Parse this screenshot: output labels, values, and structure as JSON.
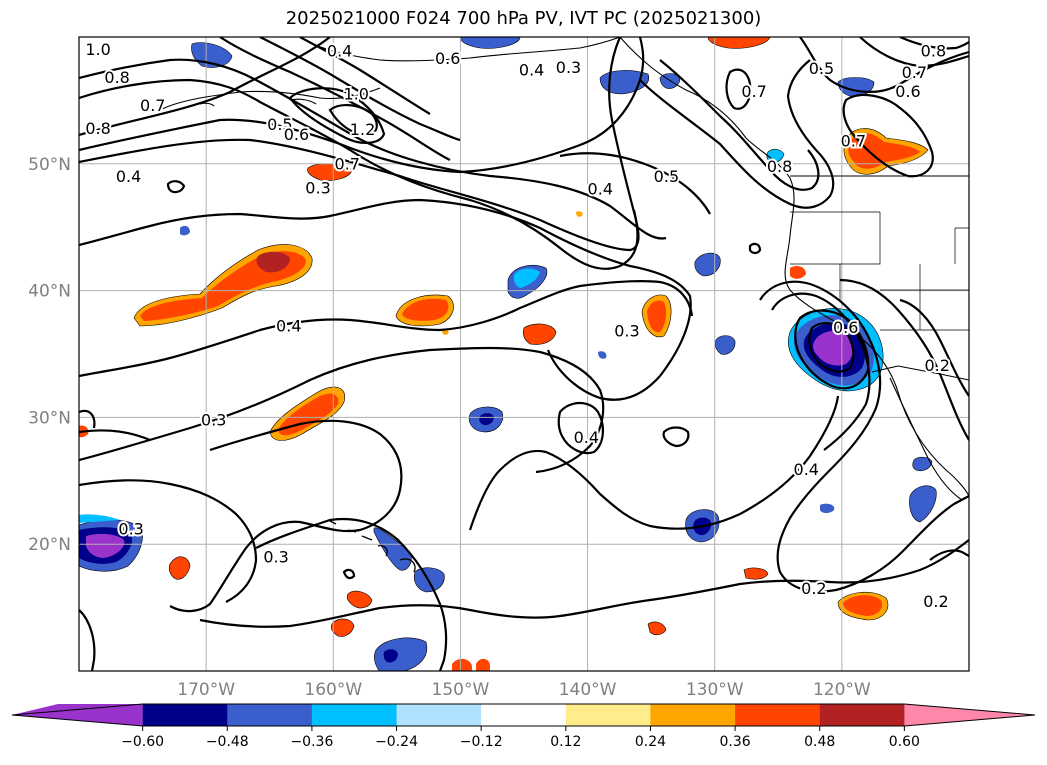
{
  "title": "2025021000 F024 700 hPa PV, IVT PC (2025021300)",
  "map": {
    "lon_range": [
      -180,
      -110
    ],
    "lat_range": [
      10,
      60
    ],
    "lon_ticks": [
      {
        "lon": -170,
        "label": "170°W"
      },
      {
        "lon": -160,
        "label": "160°W"
      },
      {
        "lon": -150,
        "label": "150°W"
      },
      {
        "lon": -140,
        "label": "140°W"
      },
      {
        "lon": -130,
        "label": "130°W"
      },
      {
        "lon": -120,
        "label": "120°W"
      }
    ],
    "lat_ticks": [
      {
        "lat": 20,
        "label": "20°N"
      },
      {
        "lat": 30,
        "label": "30°N"
      },
      {
        "lat": 40,
        "label": "40°N"
      },
      {
        "lat": 50,
        "label": "50°N"
      }
    ],
    "grid": true
  },
  "colorbar": {
    "levels": [
      -0.6,
      -0.48,
      -0.36,
      -0.24,
      -0.12,
      0.12,
      0.24,
      0.36,
      0.48,
      0.6
    ],
    "labels": [
      "−0.60",
      "−0.48",
      "−0.36",
      "−0.24",
      "−0.12",
      "0.12",
      "0.24",
      "0.36",
      "0.48",
      "0.60"
    ],
    "colors": [
      "#9933cc",
      "#00008b",
      "#3a5fcd",
      "#00bfff",
      "#b0e2ff",
      "#ffffff",
      "#ffec8b",
      "#ffa500",
      "#ff4500",
      "#b22222",
      "#ff88aa"
    ],
    "extend": "both"
  },
  "contour_labels": [
    {
      "text": "1.0",
      "lon": -178.5,
      "lat": 59.0
    },
    {
      "text": "0.8",
      "lon": -177.0,
      "lat": 56.8
    },
    {
      "text": "0.7",
      "lon": -174.2,
      "lat": 54.6
    },
    {
      "text": "0.8",
      "lon": -178.5,
      "lat": 52.8
    },
    {
      "text": "0.5",
      "lon": -164.2,
      "lat": 53.1
    },
    {
      "text": "0.6",
      "lon": -162.9,
      "lat": 52.3
    },
    {
      "text": "0.7",
      "lon": -158.9,
      "lat": 50.0
    },
    {
      "text": "0.3",
      "lon": -161.2,
      "lat": 48.1
    },
    {
      "text": "1.0",
      "lon": -158.2,
      "lat": 55.5
    },
    {
      "text": "1.2",
      "lon": -157.7,
      "lat": 52.7
    },
    {
      "text": "0.4",
      "lon": -159.5,
      "lat": 58.9
    },
    {
      "text": "0.4",
      "lon": -176.1,
      "lat": 49.0
    },
    {
      "text": "0.6",
      "lon": -151.0,
      "lat": 58.3
    },
    {
      "text": "0.4",
      "lon": -144.4,
      "lat": 57.4
    },
    {
      "text": "0.3",
      "lon": -141.5,
      "lat": 57.6
    },
    {
      "text": "0.4",
      "lon": -139.0,
      "lat": 48.0
    },
    {
      "text": "0.5",
      "lon": -133.8,
      "lat": 49.0
    },
    {
      "text": "0.7",
      "lon": -126.9,
      "lat": 55.7
    },
    {
      "text": "0.8",
      "lon": -124.9,
      "lat": 49.8
    },
    {
      "text": "0.5",
      "lon": -121.6,
      "lat": 57.5
    },
    {
      "text": "0.7",
      "lon": -119.1,
      "lat": 51.8
    },
    {
      "text": "0.8",
      "lon": -112.8,
      "lat": 58.9
    },
    {
      "text": "0.7",
      "lon": -114.3,
      "lat": 57.2
    },
    {
      "text": "0.6",
      "lon": -114.8,
      "lat": 55.7
    },
    {
      "text": "0.4",
      "lon": -163.5,
      "lat": 37.2
    },
    {
      "text": "0.3",
      "lon": -169.4,
      "lat": 29.8
    },
    {
      "text": "0.3",
      "lon": -175.9,
      "lat": 21.2
    },
    {
      "text": "0.3",
      "lon": -164.5,
      "lat": 19.0
    },
    {
      "text": "0.3",
      "lon": -136.9,
      "lat": 36.8
    },
    {
      "text": "0.4",
      "lon": -140.1,
      "lat": 28.4
    },
    {
      "text": "0.6",
      "lon": -119.7,
      "lat": 37.1
    },
    {
      "text": "0.4",
      "lon": -122.8,
      "lat": 25.9
    },
    {
      "text": "0.2",
      "lon": -122.2,
      "lat": 16.5
    },
    {
      "text": "0.2",
      "lon": -112.5,
      "lat": 34.1
    },
    {
      "text": "0.2",
      "lon": -112.6,
      "lat": 15.5
    }
  ]
}
